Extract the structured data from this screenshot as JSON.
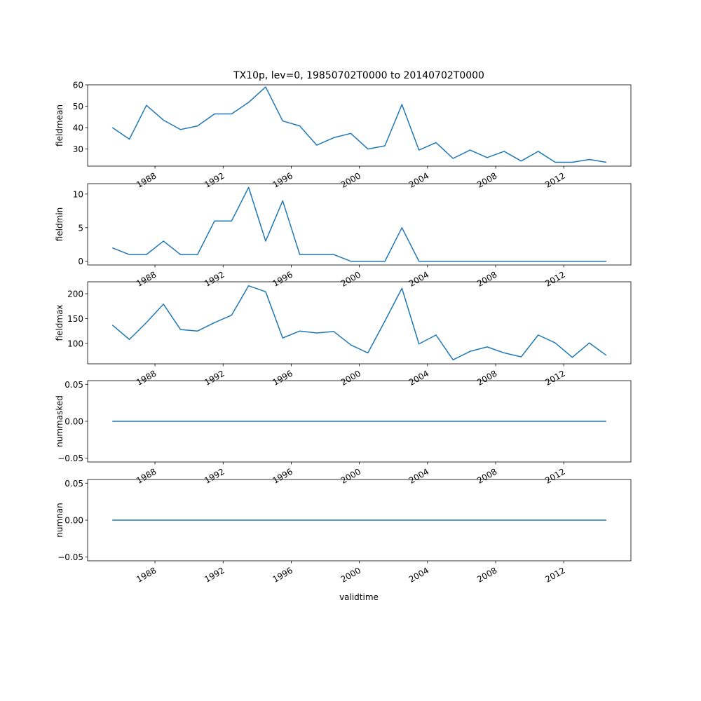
{
  "title": "TX10p, lev=0, 19850702T0000 to 20140702T0000",
  "xlabel": "validtime",
  "x_tick_labels": [
    "1988",
    "1992",
    "1996",
    "2000",
    "2004",
    "2008",
    "2012"
  ],
  "colors": {
    "line": "#1f77b4",
    "axis": "#000000",
    "background": "#ffffff"
  },
  "chart_data": [
    {
      "type": "line",
      "ylabel": "fieldmean",
      "x": [
        "1985-07-02",
        "1986-07-02",
        "1987-07-02",
        "1988-07-02",
        "1989-07-02",
        "1990-07-02",
        "1991-07-02",
        "1992-07-02",
        "1993-07-02",
        "1994-07-02",
        "1995-07-02",
        "1996-07-02",
        "1997-07-02",
        "1998-07-02",
        "1999-07-02",
        "2000-07-02",
        "2001-07-02",
        "2002-07-02",
        "2003-07-02",
        "2004-07-02",
        "2005-07-02",
        "2006-07-02",
        "2007-07-02",
        "2008-07-02",
        "2009-07-02",
        "2010-07-02",
        "2011-07-02",
        "2012-07-02",
        "2013-07-02",
        "2014-07-02"
      ],
      "values": [
        40.0,
        34.6,
        50.4,
        43.5,
        39.1,
        40.8,
        46.4,
        46.4,
        51.8,
        59.0,
        43.1,
        40.8,
        31.8,
        35.3,
        37.3,
        30.0,
        31.5,
        50.8,
        29.5,
        33.0,
        25.6,
        29.5,
        26.0,
        28.9,
        24.4,
        28.9,
        23.8,
        23.8,
        25.1,
        23.8
      ],
      "ylim": [
        22,
        60
      ],
      "yticks": [
        30,
        40,
        50,
        60
      ],
      "ytick_labels": [
        "30",
        "40",
        "50",
        "60"
      ]
    },
    {
      "type": "line",
      "ylabel": "fieldmin",
      "x": [
        "1985-07-02",
        "1986-07-02",
        "1987-07-02",
        "1988-07-02",
        "1989-07-02",
        "1990-07-02",
        "1991-07-02",
        "1992-07-02",
        "1993-07-02",
        "1994-07-02",
        "1995-07-02",
        "1996-07-02",
        "1997-07-02",
        "1998-07-02",
        "1999-07-02",
        "2000-07-02",
        "2001-07-02",
        "2002-07-02",
        "2003-07-02",
        "2004-07-02",
        "2005-07-02",
        "2006-07-02",
        "2007-07-02",
        "2008-07-02",
        "2009-07-02",
        "2010-07-02",
        "2011-07-02",
        "2012-07-02",
        "2013-07-02",
        "2014-07-02"
      ],
      "values": [
        2,
        1,
        1,
        3,
        1,
        1,
        6,
        6,
        11,
        3,
        9,
        1,
        1,
        1,
        0,
        0,
        0,
        5,
        0,
        0,
        0,
        0,
        0,
        0,
        0,
        0,
        0,
        0,
        0,
        0
      ],
      "ylim": [
        -0.55,
        11.55
      ],
      "yticks": [
        0,
        5,
        10
      ],
      "ytick_labels": [
        "0",
        "5",
        "10"
      ]
    },
    {
      "type": "line",
      "ylabel": "fieldmax",
      "x": [
        "1985-07-02",
        "1986-07-02",
        "1987-07-02",
        "1988-07-02",
        "1989-07-02",
        "1990-07-02",
        "1991-07-02",
        "1992-07-02",
        "1993-07-02",
        "1994-07-02",
        "1995-07-02",
        "1996-07-02",
        "1997-07-02",
        "1998-07-02",
        "1999-07-02",
        "2000-07-02",
        "2001-07-02",
        "2002-07-02",
        "2003-07-02",
        "2004-07-02",
        "2005-07-02",
        "2006-07-02",
        "2007-07-02",
        "2008-07-02",
        "2009-07-02",
        "2010-07-02",
        "2011-07-02",
        "2012-07-02",
        "2013-07-02",
        "2014-07-02"
      ],
      "values": [
        137,
        108,
        142,
        179,
        128,
        125,
        142,
        157,
        216,
        204,
        111,
        125,
        121,
        124,
        97,
        81,
        145,
        211,
        99,
        117,
        67,
        84,
        93,
        81,
        73,
        117,
        101,
        72,
        101,
        76
      ],
      "ylim": [
        59,
        224
      ],
      "yticks": [
        100,
        150,
        200
      ],
      "ytick_labels": [
        "100",
        "150",
        "200"
      ]
    },
    {
      "type": "line",
      "ylabel": "nummasked",
      "x": [
        "1985-07-02",
        "1986-07-02",
        "1987-07-02",
        "1988-07-02",
        "1989-07-02",
        "1990-07-02",
        "1991-07-02",
        "1992-07-02",
        "1993-07-02",
        "1994-07-02",
        "1995-07-02",
        "1996-07-02",
        "1997-07-02",
        "1998-07-02",
        "1999-07-02",
        "2000-07-02",
        "2001-07-02",
        "2002-07-02",
        "2003-07-02",
        "2004-07-02",
        "2005-07-02",
        "2006-07-02",
        "2007-07-02",
        "2008-07-02",
        "2009-07-02",
        "2010-07-02",
        "2011-07-02",
        "2012-07-02",
        "2013-07-02",
        "2014-07-02"
      ],
      "values": [
        0,
        0,
        0,
        0,
        0,
        0,
        0,
        0,
        0,
        0,
        0,
        0,
        0,
        0,
        0,
        0,
        0,
        0,
        0,
        0,
        0,
        0,
        0,
        0,
        0,
        0,
        0,
        0,
        0,
        0
      ],
      "ylim": [
        -0.055,
        0.055
      ],
      "yticks": [
        0.05,
        0.0,
        -0.05
      ],
      "ytick_labels": [
        "0.05",
        "0.00",
        "−0.05"
      ]
    },
    {
      "type": "line",
      "ylabel": "numnan",
      "x": [
        "1985-07-02",
        "1986-07-02",
        "1987-07-02",
        "1988-07-02",
        "1989-07-02",
        "1990-07-02",
        "1991-07-02",
        "1992-07-02",
        "1993-07-02",
        "1994-07-02",
        "1995-07-02",
        "1996-07-02",
        "1997-07-02",
        "1998-07-02",
        "1999-07-02",
        "2000-07-02",
        "2001-07-02",
        "2002-07-02",
        "2003-07-02",
        "2004-07-02",
        "2005-07-02",
        "2006-07-02",
        "2007-07-02",
        "2008-07-02",
        "2009-07-02",
        "2010-07-02",
        "2011-07-02",
        "2012-07-02",
        "2013-07-02",
        "2014-07-02"
      ],
      "values": [
        0,
        0,
        0,
        0,
        0,
        0,
        0,
        0,
        0,
        0,
        0,
        0,
        0,
        0,
        0,
        0,
        0,
        0,
        0,
        0,
        0,
        0,
        0,
        0,
        0,
        0,
        0,
        0,
        0,
        0
      ],
      "ylim": [
        -0.055,
        0.055
      ],
      "yticks": [
        0.05,
        0.0,
        -0.05
      ],
      "ytick_labels": [
        "0.05",
        "0.00",
        "−0.05"
      ]
    }
  ]
}
